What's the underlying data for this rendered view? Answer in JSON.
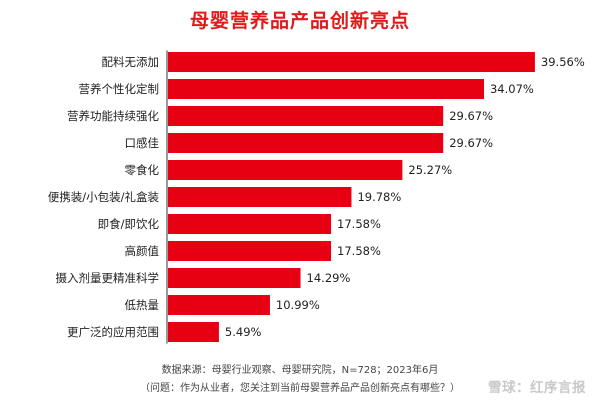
{
  "header": {
    "title": "母婴营养品产品创新亮点"
  },
  "chart_data": {
    "type": "bar",
    "orientation": "horizontal",
    "categories": [
      "配料无添加",
      "营养个性化定制",
      "营养功能持续强化",
      "口感佳",
      "零食化",
      "便携装/小包装/礼盒装",
      "即食/即饮化",
      "高颜值",
      "摄入剂量更精准科学",
      "低热量",
      "更广泛的应用范围"
    ],
    "values": [
      39.56,
      34.07,
      29.67,
      29.67,
      25.27,
      19.78,
      17.58,
      17.58,
      14.29,
      10.99,
      5.49
    ],
    "value_labels": [
      "39.56%",
      "34.07%",
      "29.67%",
      "29.67%",
      "25.27%",
      "19.78%",
      "17.58%",
      "17.58%",
      "14.29%",
      "10.99%",
      "5.49%"
    ],
    "xlim": [
      0,
      40
    ],
    "grid": false,
    "bar_color": "#e60012"
  },
  "footer": {
    "source": "数据来源：母婴行业观察、母婴研究院，N=728；2023年6月",
    "question": "（问题：作为从业者，您关注到当前母婴营养品产品创新亮点有哪些？）",
    "watermark": "雪球：红序言报"
  }
}
